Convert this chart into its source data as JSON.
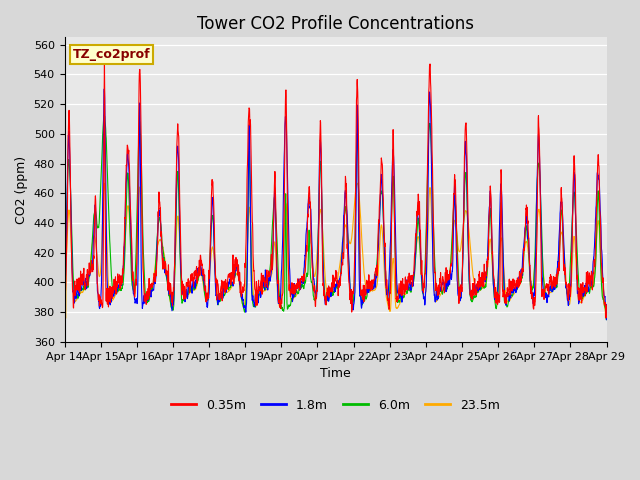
{
  "title": "Tower CO2 Profile Concentrations",
  "xlabel": "Time",
  "ylabel": "CO2 (ppm)",
  "ylim": [
    360,
    565
  ],
  "yticks": [
    360,
    380,
    400,
    420,
    440,
    460,
    480,
    500,
    520,
    540,
    560
  ],
  "x_labels": [
    "Apr 14",
    "Apr 15",
    "Apr 16",
    "Apr 17",
    "Apr 18",
    "Apr 19",
    "Apr 20",
    "Apr 21",
    "Apr 22",
    "Apr 23",
    "Apr 24",
    "Apr 25",
    "Apr 26",
    "Apr 27",
    "Apr 28",
    "Apr 29"
  ],
  "colors": {
    "0.35m": "#ff0000",
    "1.8m": "#0000ff",
    "6.0m": "#00bb00",
    "23.5m": "#ffaa00"
  },
  "legend_label": "TZ_co2prof",
  "legend_bg": "#ffffcc",
  "legend_border": "#ccaa00",
  "bg_color": "#e8e8e8",
  "grid_color": "#ffffff",
  "title_fontsize": 12,
  "axis_fontsize": 9,
  "tick_fontsize": 8,
  "legend_fontsize": 9,
  "line_width": 0.8,
  "n_points": 2160
}
